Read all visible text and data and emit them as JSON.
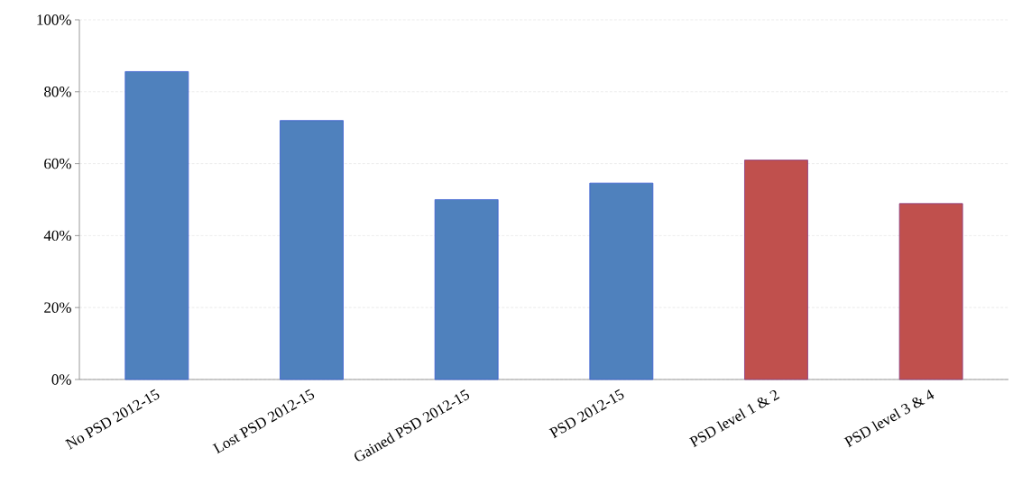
{
  "chart_data": {
    "type": "bar",
    "categories": [
      "No PSD 2012-15",
      "Lost PSD 2012-15",
      "Gained PSD 2012-15",
      "PSD 2012-15",
      "PSD level 1 & 2",
      "PSD level 3 & 4"
    ],
    "values": [
      85.6,
      72.0,
      50.0,
      54.6,
      61.0,
      48.9
    ],
    "colors": [
      "#4f81bd",
      "#4f81bd",
      "#4f81bd",
      "#4f81bd",
      "#c0504d",
      "#c0504d"
    ],
    "ylim": [
      0,
      100
    ],
    "yticks": [
      {
        "value": 0,
        "label": "0%"
      },
      {
        "value": 20,
        "label": "20%"
      },
      {
        "value": 40,
        "label": "40%"
      },
      {
        "value": 60,
        "label": "60%"
      },
      {
        "value": 80,
        "label": "80%"
      },
      {
        "value": 100,
        "label": "100%"
      }
    ],
    "grid": "y"
  }
}
